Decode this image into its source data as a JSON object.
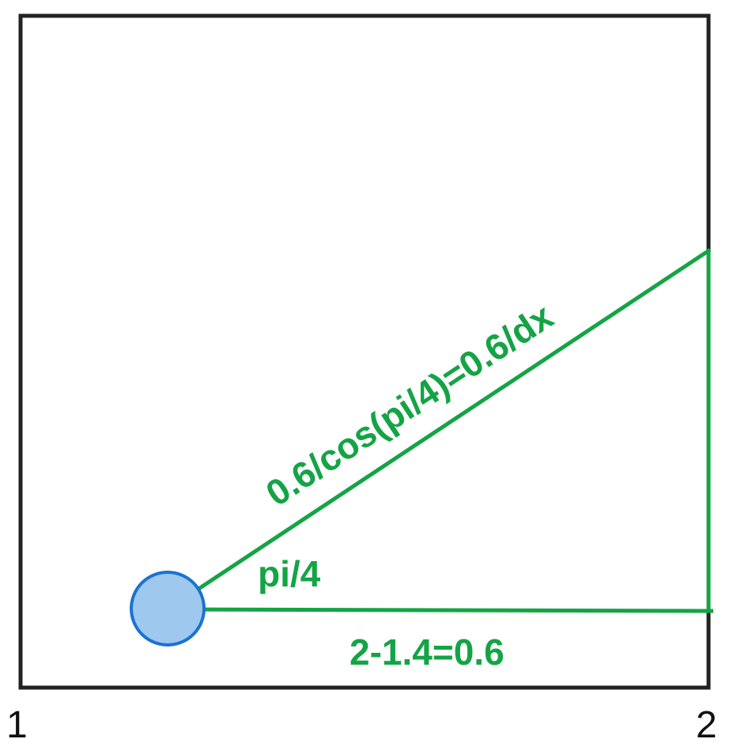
{
  "labels": {
    "hypotenuse": "0.6/cos(pi/4)=0.6/dx",
    "angle": "pi/4",
    "base": "2-1.4=0.6",
    "axis_left": "1",
    "axis_right": "2"
  },
  "colors": {
    "frame": "#222222",
    "triangle": "#14a445",
    "circle_fill": "#9ec8ee",
    "circle_stroke": "#1a73d1",
    "text": "#111111"
  }
}
